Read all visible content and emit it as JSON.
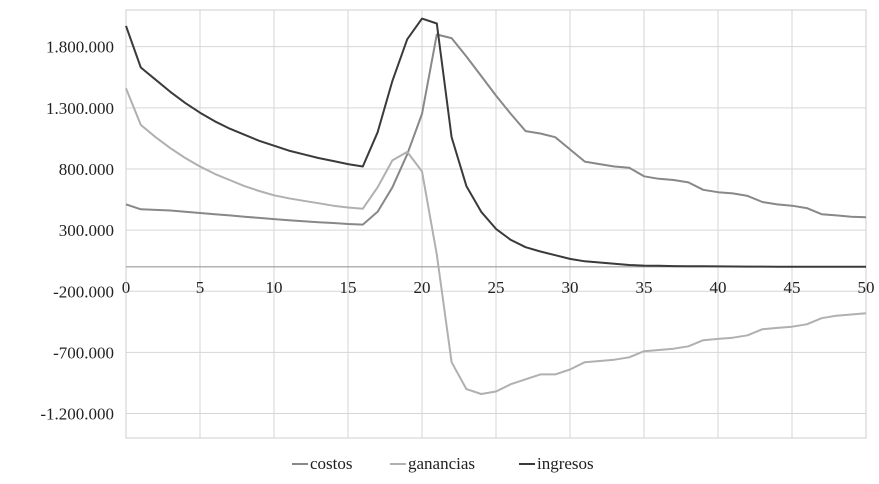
{
  "chart_data": {
    "type": "line",
    "title": "",
    "xlabel": "",
    "ylabel": "",
    "xlim": [
      0,
      50
    ],
    "ylim": [
      -1400000,
      2100000
    ],
    "grid": true,
    "legend_position": "bottom",
    "x_ticks": [
      0,
      5,
      10,
      15,
      20,
      25,
      30,
      35,
      40,
      45,
      50
    ],
    "x_tick_labels": [
      "0",
      "5",
      "10",
      "15",
      "20",
      "25",
      "30",
      "35",
      "40",
      "45",
      "50"
    ],
    "y_ticks": [
      1800000,
      1300000,
      800000,
      300000,
      -200000,
      -700000,
      -1200000
    ],
    "y_tick_labels": [
      "1.800.000",
      "1.300.000",
      "800.000",
      "300.000",
      "-200.000",
      "-700.000",
      "-1.200.000"
    ],
    "x": [
      0,
      1,
      2,
      3,
      4,
      5,
      6,
      7,
      8,
      9,
      10,
      11,
      12,
      13,
      14,
      15,
      16,
      17,
      18,
      19,
      20,
      21,
      22,
      23,
      24,
      25,
      26,
      27,
      28,
      29,
      30,
      31,
      32,
      33,
      34,
      35,
      36,
      37,
      38,
      39,
      40,
      41,
      42,
      43,
      44,
      45,
      46,
      47,
      48,
      49,
      50
    ],
    "series": [
      {
        "name": "costos",
        "color": "#888888",
        "values": [
          510000,
          470000,
          465000,
          460000,
          450000,
          440000,
          430000,
          420000,
          410000,
          400000,
          390000,
          380000,
          372000,
          365000,
          358000,
          350000,
          345000,
          450000,
          650000,
          920000,
          1250000,
          1900000,
          1870000,
          1720000,
          1560000,
          1400000,
          1250000,
          1110000,
          1090000,
          1060000,
          960000,
          860000,
          840000,
          820000,
          810000,
          740000,
          720000,
          710000,
          690000,
          630000,
          610000,
          600000,
          580000,
          530000,
          510000,
          500000,
          480000,
          430000,
          420000,
          410000,
          405000
        ]
      },
      {
        "name": "ganancias",
        "color": "#b0b0b0",
        "values": [
          1460000,
          1160000,
          1060000,
          970000,
          890000,
          820000,
          760000,
          710000,
          660000,
          620000,
          585000,
          560000,
          540000,
          520000,
          500000,
          485000,
          475000,
          650000,
          870000,
          940000,
          780000,
          100000,
          -780000,
          -1000000,
          -1040000,
          -1020000,
          -960000,
          -920000,
          -880000,
          -880000,
          -840000,
          -780000,
          -770000,
          -760000,
          -740000,
          -690000,
          -680000,
          -670000,
          -650000,
          -600000,
          -590000,
          -580000,
          -560000,
          -510000,
          -500000,
          -490000,
          -470000,
          -420000,
          -400000,
          -390000,
          -380000
        ]
      },
      {
        "name": "ingresos",
        "color": "#3a3a3a",
        "values": [
          1970000,
          1630000,
          1530000,
          1430000,
          1340000,
          1260000,
          1190000,
          1130000,
          1080000,
          1030000,
          990000,
          950000,
          920000,
          890000,
          865000,
          840000,
          820000,
          1100000,
          1520000,
          1860000,
          2030000,
          1990000,
          1060000,
          660000,
          450000,
          310000,
          220000,
          160000,
          125000,
          95000,
          65000,
          45000,
          35000,
          25000,
          15000,
          10000,
          8000,
          6000,
          5000,
          4000,
          3000,
          2500,
          2000,
          1500,
          1200,
          1000,
          800,
          600,
          500,
          400,
          300
        ]
      }
    ]
  }
}
